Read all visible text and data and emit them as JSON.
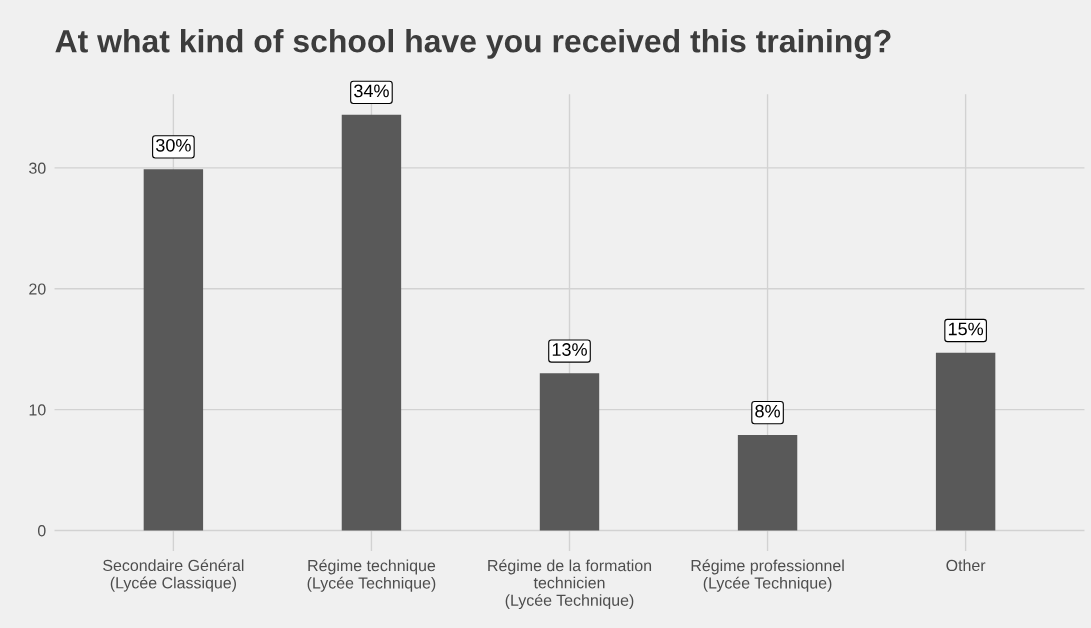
{
  "chart_data": {
    "type": "bar",
    "title": "At what kind of school have you received this training?",
    "categories": [
      "Secondaire Général\n(Lycée Classique)",
      "Régime technique\n(Lycée Technique)",
      "Régime de la formation\ntechnicien\n(Lycée Technique)",
      "Régime professionnel\n(Lycée Technique)",
      "Other"
    ],
    "values": [
      29.9,
      34.4,
      13.0,
      7.9,
      14.7
    ],
    "value_labels": [
      "30%",
      "34%",
      "13%",
      "8%",
      "15%"
    ],
    "color": "#595959",
    "ylim": [
      -1.7,
      36.1
    ],
    "yticks": [
      0,
      10,
      20,
      30
    ],
    "grid": true
  }
}
